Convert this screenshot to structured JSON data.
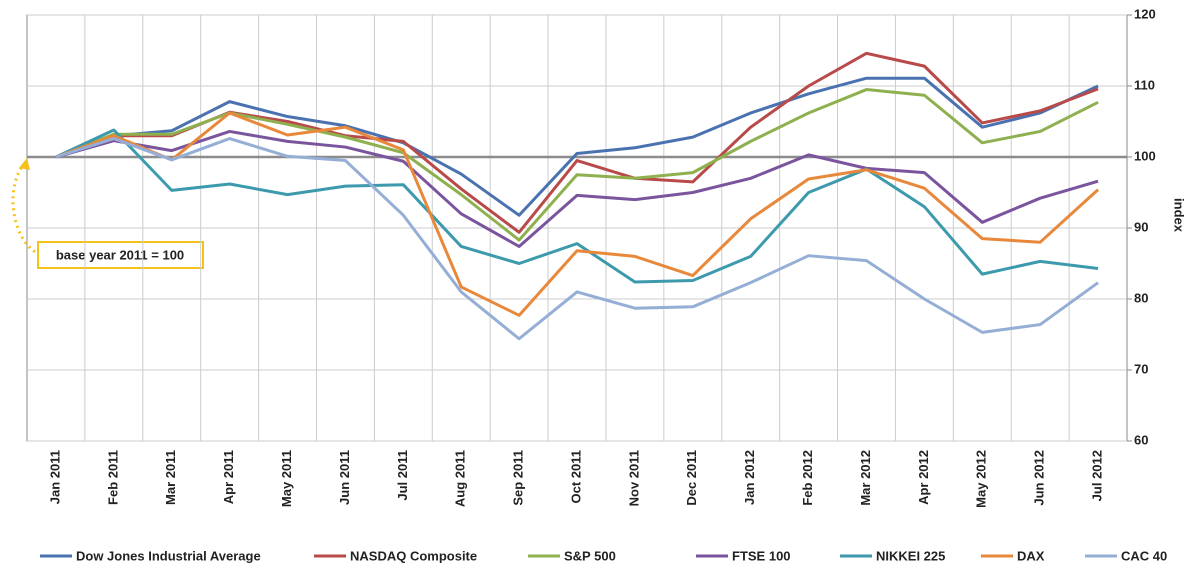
{
  "chart_data": {
    "type": "line",
    "y_axis_label": "index",
    "annotation": "base year 2011 = 100",
    "baseline": 100,
    "categories": [
      "Jan 2011",
      "Feb 2011",
      "Mar 2011",
      "Apr 2011",
      "May 2011",
      "Jun 2011",
      "Jul 2011",
      "Aug 2011",
      "Sep 2011",
      "Oct 2011",
      "Nov 2011",
      "Dec 2011",
      "Jan 2012",
      "Feb 2012",
      "Mar 2012",
      "Apr 2012",
      "May 2012",
      "Jun 2012",
      "Jul 2012"
    ],
    "series": [
      {
        "name": "Dow Jones Industrial Average",
        "color": "#4a72b0",
        "values": [
          100,
          103.0,
          103.7,
          107.8,
          105.7,
          104.4,
          102.0,
          97.6,
          91.8,
          100.5,
          101.3,
          102.8,
          106.2,
          108.9,
          111.1,
          111.1,
          104.2,
          106.2,
          110.0
        ]
      },
      {
        "name": "NASDAQ Composite",
        "color": "#b84a4a",
        "values": [
          100,
          103.0,
          103.0,
          106.3,
          105.0,
          103.0,
          102.2,
          95.5,
          89.4,
          99.5,
          97.0,
          96.5,
          104.2,
          110.0,
          114.6,
          112.8,
          104.8,
          106.5,
          109.6
        ]
      },
      {
        "name": "S&P 500",
        "color": "#8fb04e",
        "values": [
          100,
          103.2,
          103.2,
          106.2,
          104.6,
          102.8,
          100.6,
          94.7,
          88.3,
          97.5,
          97.0,
          97.8,
          102.2,
          106.2,
          109.5,
          108.7,
          102.0,
          103.6,
          107.7
        ]
      },
      {
        "name": "FTSE 100",
        "color": "#7a559e",
        "values": [
          100,
          102.3,
          100.9,
          103.6,
          102.2,
          101.4,
          99.4,
          92.0,
          87.4,
          94.6,
          94.0,
          95.0,
          97.0,
          100.3,
          98.4,
          97.8,
          90.8,
          94.2,
          96.6
        ]
      },
      {
        "name": "NIKKEI 225",
        "color": "#3c9aac",
        "values": [
          100,
          103.8,
          95.3,
          96.2,
          94.7,
          95.9,
          96.1,
          87.4,
          85.0,
          87.8,
          82.4,
          82.6,
          86.0,
          95.0,
          98.3,
          93.0,
          83.5,
          85.3,
          84.3
        ]
      },
      {
        "name": "DAX",
        "color": "#e8883a",
        "values": [
          100,
          103.0,
          99.6,
          106.2,
          103.1,
          104.2,
          101.0,
          81.7,
          77.7,
          86.8,
          86.0,
          83.3,
          91.3,
          96.9,
          98.2,
          95.6,
          88.5,
          88.0,
          95.4
        ]
      },
      {
        "name": "CAC 40",
        "color": "#95aed5",
        "values": [
          100,
          102.6,
          99.6,
          102.6,
          100.1,
          99.5,
          91.8,
          81.0,
          74.4,
          81.0,
          78.7,
          78.9,
          82.3,
          86.1,
          85.4,
          80.0,
          75.3,
          76.4,
          82.3
        ]
      }
    ],
    "ylim": [
      60,
      120
    ],
    "yticks": [
      60,
      70,
      80,
      90,
      100,
      110,
      120
    ],
    "grid": true
  }
}
